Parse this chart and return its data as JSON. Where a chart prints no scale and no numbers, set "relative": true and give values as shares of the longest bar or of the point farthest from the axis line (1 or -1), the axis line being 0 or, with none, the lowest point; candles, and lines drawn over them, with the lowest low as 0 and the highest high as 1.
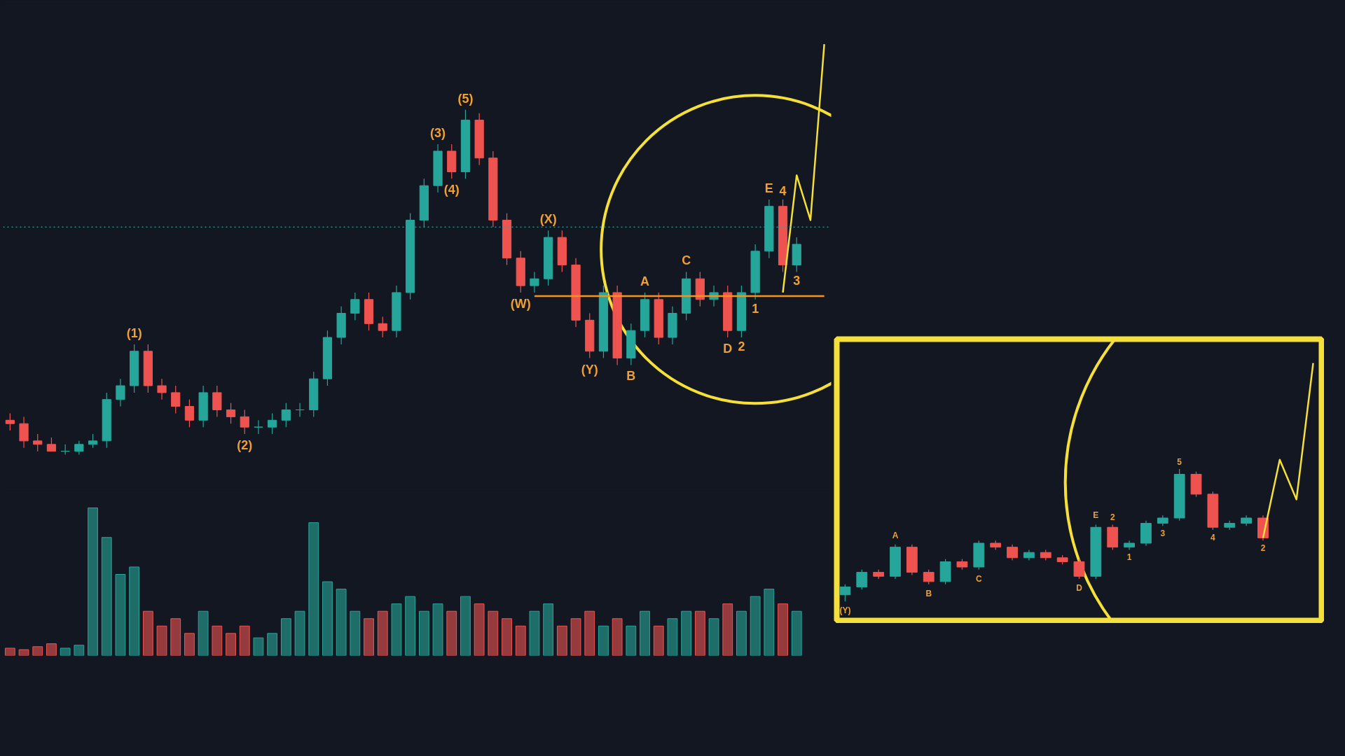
{
  "chart_data": [
    {
      "type": "candlestick",
      "relative": true,
      "categories": [
        null,
        null,
        null,
        null,
        null,
        null,
        null,
        null,
        null,
        null,
        null,
        null,
        null,
        null,
        null,
        null,
        null,
        null,
        null,
        null,
        null,
        null,
        null,
        null,
        null,
        null,
        null,
        null,
        null,
        null,
        null,
        null,
        null,
        null,
        null,
        null,
        null,
        null,
        null,
        null,
        null,
        null,
        null,
        null,
        null,
        null,
        null,
        null,
        null,
        null,
        null,
        null,
        null,
        null,
        null,
        null,
        null,
        null,
        null,
        null
      ],
      "ohlc": [
        [
          0.1,
          0.12,
          0.07,
          0.09
        ],
        [
          0.09,
          0.11,
          0.02,
          0.04
        ],
        [
          0.04,
          0.06,
          0.01,
          0.03
        ],
        [
          0.03,
          0.05,
          0.01,
          0.01
        ],
        [
          0.01,
          0.03,
          0.0,
          0.01
        ],
        [
          0.01,
          0.04,
          0.0,
          0.03
        ],
        [
          0.03,
          0.06,
          0.02,
          0.04
        ],
        [
          0.04,
          0.18,
          0.02,
          0.16
        ],
        [
          0.16,
          0.22,
          0.14,
          0.2
        ],
        [
          0.2,
          0.32,
          0.18,
          0.3
        ],
        [
          0.3,
          0.32,
          0.18,
          0.2
        ],
        [
          0.2,
          0.22,
          0.16,
          0.18
        ],
        [
          0.18,
          0.2,
          0.12,
          0.14
        ],
        [
          0.14,
          0.16,
          0.08,
          0.1
        ],
        [
          0.1,
          0.2,
          0.08,
          0.18
        ],
        [
          0.18,
          0.2,
          0.11,
          0.13
        ],
        [
          0.13,
          0.15,
          0.09,
          0.11
        ],
        [
          0.11,
          0.13,
          0.06,
          0.08
        ],
        [
          0.08,
          0.1,
          0.06,
          0.08
        ],
        [
          0.08,
          0.12,
          0.06,
          0.1
        ],
        [
          0.1,
          0.15,
          0.08,
          0.13
        ],
        [
          0.13,
          0.15,
          0.11,
          0.13
        ],
        [
          0.13,
          0.24,
          0.11,
          0.22
        ],
        [
          0.22,
          0.36,
          0.2,
          0.34
        ],
        [
          0.34,
          0.43,
          0.32,
          0.41
        ],
        [
          0.41,
          0.47,
          0.39,
          0.45
        ],
        [
          0.45,
          0.47,
          0.36,
          0.38
        ],
        [
          0.38,
          0.4,
          0.34,
          0.36
        ],
        [
          0.36,
          0.49,
          0.34,
          0.47
        ],
        [
          0.47,
          0.7,
          0.45,
          0.68
        ],
        [
          0.68,
          0.8,
          0.66,
          0.78
        ],
        [
          0.78,
          0.9,
          0.76,
          0.88
        ],
        [
          0.88,
          0.9,
          0.8,
          0.82
        ],
        [
          0.82,
          1.0,
          0.8,
          0.97
        ],
        [
          0.97,
          0.99,
          0.84,
          0.86
        ],
        [
          0.86,
          0.88,
          0.66,
          0.68
        ],
        [
          0.68,
          0.7,
          0.55,
          0.57
        ],
        [
          0.57,
          0.59,
          0.47,
          0.49
        ],
        [
          0.49,
          0.53,
          0.47,
          0.51
        ],
        [
          0.51,
          0.65,
          0.49,
          0.63
        ],
        [
          0.63,
          0.65,
          0.53,
          0.55
        ],
        [
          0.55,
          0.57,
          0.37,
          0.39
        ],
        [
          0.39,
          0.41,
          0.28,
          0.3
        ],
        [
          0.3,
          0.49,
          0.28,
          0.47
        ],
        [
          0.47,
          0.49,
          0.26,
          0.28
        ],
        [
          0.28,
          0.38,
          0.26,
          0.36
        ],
        [
          0.36,
          0.47,
          0.34,
          0.45
        ],
        [
          0.45,
          0.47,
          0.32,
          0.34
        ],
        [
          0.34,
          0.43,
          0.32,
          0.41
        ],
        [
          0.41,
          0.53,
          0.39,
          0.51
        ],
        [
          0.51,
          0.53,
          0.43,
          0.45
        ],
        [
          0.45,
          0.49,
          0.43,
          0.47
        ],
        [
          0.47,
          0.49,
          0.34,
          0.36
        ],
        [
          0.36,
          0.49,
          0.34,
          0.47
        ],
        [
          0.47,
          0.61,
          0.45,
          0.59
        ],
        [
          0.59,
          0.74,
          0.57,
          0.72
        ],
        [
          0.72,
          0.74,
          0.53,
          0.55
        ],
        [
          0.55,
          0.63,
          0.53,
          0.61
        ],
        null,
        null
      ],
      "colors": [
        "#ef5350",
        "#ef5350",
        "#ef5350",
        "#ef5350",
        "#26a69a",
        "#26a69a",
        "#26a69a",
        "#26a69a",
        "#26a69a",
        "#26a69a",
        "#ef5350",
        "#ef5350",
        "#ef5350",
        "#ef5350",
        "#26a69a",
        "#ef5350",
        "#ef5350",
        "#ef5350",
        "#26a69a",
        "#26a69a",
        "#26a69a",
        "#26a69a",
        "#26a69a",
        "#26a69a",
        "#26a69a",
        "#26a69a",
        "#ef5350",
        "#ef5350",
        "#26a69a",
        "#26a69a",
        "#26a69a",
        "#26a69a",
        "#ef5350",
        "#26a69a",
        "#ef5350",
        "#ef5350",
        "#ef5350",
        "#ef5350",
        "#26a69a",
        "#26a69a",
        "#ef5350",
        "#ef5350",
        "#ef5350",
        "#26a69a",
        "#ef5350",
        "#26a69a",
        "#26a69a",
        "#ef5350",
        "#26a69a",
        "#26a69a",
        "#ef5350",
        "#26a69a",
        "#ef5350",
        "#26a69a",
        "#26a69a",
        "#26a69a",
        "#ef5350",
        "#26a69a",
        "#26a69a",
        "#26a69a"
      ],
      "value_labels": [
        null,
        null,
        null,
        null,
        null,
        null,
        null,
        null,
        null,
        "(1)",
        null,
        null,
        null,
        null,
        null,
        null,
        null,
        "(2)",
        null,
        null,
        null,
        null,
        null,
        null,
        null,
        null,
        null,
        null,
        null,
        null,
        null,
        "(3)",
        "(4)",
        "(5)",
        null,
        null,
        null,
        "(W)",
        null,
        "(X)",
        null,
        null,
        "(Y)",
        null,
        null,
        "B",
        "A",
        null,
        null,
        "C",
        null,
        null,
        "D",
        "2",
        "1",
        "E",
        "4",
        "3",
        null,
        null
      ],
      "series": [
        {
          "type": "line",
          "color": "#f5e03a",
          "values": [
            null,
            null,
            null,
            null,
            null,
            null,
            null,
            null,
            null,
            null,
            null,
            null,
            null,
            null,
            null,
            null,
            null,
            null,
            null,
            null,
            null,
            null,
            null,
            null,
            null,
            null,
            null,
            null,
            null,
            null,
            null,
            null,
            null,
            null,
            null,
            null,
            null,
            null,
            null,
            null,
            null,
            null,
            null,
            null,
            null,
            null,
            null,
            null,
            null,
            null,
            null,
            null,
            null,
            null,
            null,
            null,
            0.47,
            0.81,
            0.68,
            1.19
          ]
        },
        {
          "type": "line",
          "color": "#f7931a",
          "values": [
            null,
            null,
            null,
            null,
            null,
            null,
            null,
            null,
            null,
            null,
            null,
            null,
            null,
            null,
            null,
            null,
            null,
            null,
            null,
            null,
            null,
            null,
            null,
            null,
            null,
            null,
            null,
            null,
            null,
            null,
            null,
            null,
            null,
            null,
            null,
            null,
            null,
            null,
            0.46,
            0.46,
            0.46,
            0.46,
            0.46,
            0.46,
            0.46,
            0.46,
            0.46,
            0.46,
            0.46,
            0.46,
            0.46,
            0.46,
            0.46,
            0.46,
            0.46,
            0.46,
            0.46,
            0.46,
            0.46,
            0.46
          ]
        }
      ],
      "ref_lines": [
        {
          "axis": "y",
          "value": 0.66,
          "color": "#26a69a",
          "line_style": "dotted"
        }
      ]
    },
    {
      "type": "bar",
      "relative": true,
      "categories": [
        null,
        null,
        null,
        null,
        null,
        null,
        null,
        null,
        null,
        null,
        null,
        null,
        null,
        null,
        null,
        null,
        null,
        null,
        null,
        null,
        null,
        null,
        null,
        null,
        null,
        null,
        null,
        null,
        null,
        null,
        null,
        null,
        null,
        null,
        null,
        null,
        null,
        null,
        null,
        null,
        null,
        null,
        null,
        null,
        null,
        null,
        null,
        null,
        null,
        null,
        null,
        null,
        null,
        null,
        null,
        null,
        null,
        null,
        null,
        null
      ],
      "values": [
        0.05,
        0.04,
        0.06,
        0.08,
        0.05,
        0.07,
        1.0,
        0.8,
        0.55,
        0.6,
        0.3,
        0.2,
        0.25,
        0.15,
        0.3,
        0.2,
        0.15,
        0.2,
        0.12,
        0.15,
        0.25,
        0.3,
        0.9,
        0.5,
        0.45,
        0.3,
        0.25,
        0.3,
        0.35,
        0.4,
        0.3,
        0.35,
        0.3,
        0.4,
        0.35,
        0.3,
        0.25,
        0.2,
        0.3,
        0.35,
        0.2,
        0.25,
        0.3,
        0.2,
        0.25,
        0.2,
        0.3,
        0.2,
        0.25,
        0.3,
        0.3,
        0.25,
        0.35,
        0.3,
        0.4,
        0.45,
        0.35,
        0.3,
        null,
        null
      ],
      "colors": [
        "#ef5350",
        "#ef5350",
        "#ef5350",
        "#ef5350",
        "#26a69a",
        "#26a69a",
        "#26a69a",
        "#26a69a",
        "#26a69a",
        "#26a69a",
        "#ef5350",
        "#ef5350",
        "#ef5350",
        "#ef5350",
        "#26a69a",
        "#ef5350",
        "#ef5350",
        "#ef5350",
        "#26a69a",
        "#26a69a",
        "#26a69a",
        "#26a69a",
        "#26a69a",
        "#26a69a",
        "#26a69a",
        "#26a69a",
        "#ef5350",
        "#ef5350",
        "#26a69a",
        "#26a69a",
        "#26a69a",
        "#26a69a",
        "#ef5350",
        "#26a69a",
        "#ef5350",
        "#ef5350",
        "#ef5350",
        "#ef5350",
        "#26a69a",
        "#26a69a",
        "#ef5350",
        "#ef5350",
        "#ef5350",
        "#26a69a",
        "#ef5350",
        "#26a69a",
        "#26a69a",
        "#ef5350",
        "#26a69a",
        "#26a69a",
        "#ef5350",
        "#26a69a",
        "#ef5350",
        "#26a69a",
        "#26a69a",
        "#26a69a",
        "#ef5350",
        "#26a69a",
        "#26a69a",
        "#26a69a"
      ]
    },
    {
      "type": "candlestick",
      "relative": true,
      "categories": [
        null,
        null,
        null,
        null,
        null,
        null,
        null,
        null,
        null,
        null,
        null,
        null,
        null,
        null,
        null,
        null,
        null,
        null,
        null,
        null,
        null,
        null,
        null,
        null,
        null,
        null,
        null,
        null,
        null
      ],
      "ohlc": [
        [
          0.05,
          0.13,
          0.0,
          0.11
        ],
        [
          0.11,
          0.24,
          0.09,
          0.22
        ],
        [
          0.22,
          0.24,
          0.17,
          0.19
        ],
        [
          0.19,
          0.43,
          0.17,
          0.41
        ],
        [
          0.41,
          0.43,
          0.2,
          0.22
        ],
        [
          0.22,
          0.24,
          0.13,
          0.15
        ],
        [
          0.15,
          0.32,
          0.13,
          0.3
        ],
        [
          0.3,
          0.32,
          0.24,
          0.26
        ],
        [
          0.26,
          0.46,
          0.24,
          0.44
        ],
        [
          0.44,
          0.46,
          0.39,
          0.41
        ],
        [
          0.41,
          0.43,
          0.31,
          0.33
        ],
        [
          0.33,
          0.39,
          0.31,
          0.37
        ],
        [
          0.37,
          0.39,
          0.31,
          0.33
        ],
        [
          0.33,
          0.35,
          0.28,
          0.3
        ],
        [
          0.3,
          0.32,
          0.17,
          0.19
        ],
        [
          0.19,
          0.58,
          0.17,
          0.56
        ],
        [
          0.56,
          0.58,
          0.39,
          0.41
        ],
        [
          0.41,
          0.46,
          0.39,
          0.44
        ],
        [
          0.44,
          0.61,
          0.42,
          0.59
        ],
        [
          0.59,
          0.65,
          0.57,
          0.63
        ],
        [
          0.63,
          1.0,
          0.61,
          0.96
        ],
        [
          0.96,
          0.98,
          0.79,
          0.81
        ],
        [
          0.81,
          0.83,
          0.54,
          0.56
        ],
        [
          0.56,
          0.61,
          0.54,
          0.59
        ],
        [
          0.59,
          0.65,
          0.57,
          0.63
        ],
        [
          0.63,
          0.65,
          0.46,
          0.48
        ],
        null,
        null,
        null
      ],
      "colors": [
        "#26a69a",
        "#26a69a",
        "#ef5350",
        "#26a69a",
        "#ef5350",
        "#ef5350",
        "#26a69a",
        "#ef5350",
        "#26a69a",
        "#ef5350",
        "#ef5350",
        "#26a69a",
        "#ef5350",
        "#ef5350",
        "#ef5350",
        "#26a69a",
        "#ef5350",
        "#26a69a",
        "#26a69a",
        "#26a69a",
        "#26a69a",
        "#ef5350",
        "#ef5350",
        "#26a69a",
        "#26a69a",
        "#ef5350",
        "#26a69a",
        "#26a69a",
        "#26a69a"
      ],
      "value_labels": [
        "(Y)",
        null,
        null,
        "A",
        null,
        "B",
        null,
        null,
        "C",
        null,
        null,
        null,
        null,
        null,
        "D",
        "E",
        "2",
        "1",
        null,
        "3",
        "5",
        null,
        "4",
        null,
        null,
        "2",
        null,
        null,
        null
      ],
      "series": [
        {
          "type": "line",
          "color": "#f5e03a",
          "values": [
            null,
            null,
            null,
            null,
            null,
            null,
            null,
            null,
            null,
            null,
            null,
            null,
            null,
            null,
            null,
            null,
            null,
            null,
            null,
            null,
            null,
            null,
            null,
            null,
            null,
            0.48,
            1.07,
            0.77,
            1.8
          ]
        }
      ]
    }
  ]
}
